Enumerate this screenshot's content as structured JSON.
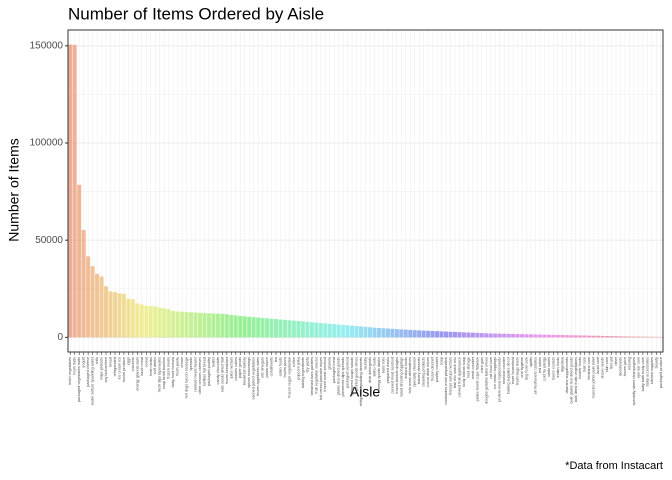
{
  "chart_data": {
    "type": "bar",
    "title": "Number of Items Ordered by Aisle",
    "x_label": "Aisle",
    "y_label": "Number of Items",
    "caption": "*Data from Instacart",
    "categories": [
      "fresh vegetables",
      "fresh fruits",
      "packaged vegetables fruits",
      "yogurt",
      "packaged cheese",
      "water seltzer sparkling water",
      "milk",
      "chips pretzels",
      "soy lactosefree",
      "bread",
      "refrigerated",
      "ice cream ice",
      "frozen produce",
      "eggs",
      "crackers",
      "energy granola bars",
      "lunch meat",
      "cereal",
      "fresh herbs",
      "soft drinks",
      "fresh dips tapenades",
      "soup broth bouillon",
      "frozen meals",
      "baby food formula",
      "fresh pasta",
      "cream",
      "hot dogs bacon sausage",
      "spreads",
      "canned meals beans",
      "other creams cheeses",
      "tortillas flat bread",
      "packaged poultry",
      "butter",
      "candy chocolate",
      "nuts seeds dried fruit",
      "frozen breakfast",
      "juice nectars",
      "cookies cakes",
      "paper goods",
      "breakfast bakery",
      "spices seasonings",
      "canned jarred vegetables",
      "frozen appetizers sides",
      "oils vinegars",
      "pasta sauce",
      "condiments",
      "tea",
      "asian foods",
      "frozen pizza",
      "frozen vegan vegetarian",
      "coffee",
      "popcorn jerky",
      "baking ingredients",
      "dry pasta",
      "breakfast bars pastries",
      "fruit vegetable snacks",
      "hot cereal pancake mixes",
      "frozen meat seafood",
      "granola",
      "packaged meat",
      "grains rice dried goods",
      "preserved dips spreads",
      "packaged seafood",
      "prepared soups salads",
      "pickled goods olives",
      "refrigerated pudding desserts",
      "laundry",
      "dish detergents",
      "latino foods",
      "energy sports drinks",
      "buns rolls",
      "prepared meals",
      "canned meat seafood",
      "frozen breads doughs",
      "salad dressing toppings",
      "instant foods",
      "tofu meat alternatives",
      "specialty cheeses",
      "bakery desserts",
      "cleaning products",
      "cocoa drink mixes",
      "frozen dessert",
      "poultry counter",
      "soap",
      "marinades meat preparation",
      "honeys syrups nectars",
      "trail mix snack mix",
      "canned fruit applesauce",
      "body lotions soap",
      "food storage",
      "meat counter",
      "plates bowls cups flatware",
      "mint gum",
      "doughs gelatins bake mixes",
      "cat food care",
      "ice cream toppings",
      "protein meal replacements",
      "seafood counter",
      "baking supplies decor",
      "more household",
      "trash bags liners",
      "oral hygiene",
      "dog food care",
      "spirits",
      "air fresheners candles",
      "red wines",
      "cold flu allergy",
      "white wines",
      "beers coolers",
      "indian foods",
      "digestion",
      "vitamins supplements",
      "bulk grains rice dried goods",
      "bulk dried fruits vegetables",
      "kosher foods",
      "hair care",
      "feminine care",
      "muscles joints pain relief",
      "facial care",
      "shave needs",
      "skin care",
      "first aid",
      "other",
      "deodorants",
      "frozen juice",
      "missing",
      "specialty wines champagnes",
      "eye ear care",
      "baby bath body care",
      "baby accessories",
      "kitchen supplies",
      "beauty",
      "packaged produce"
    ],
    "values": [
      150609,
      150473,
      78493,
      55240,
      41699,
      36617,
      32644,
      31269,
      26240,
      23635,
      23228,
      22676,
      22453,
      19875,
      19592,
      17449,
      16957,
      16201,
      16052,
      15936,
      15290,
      14995,
      14500,
      13600,
      13300,
      13200,
      13000,
      12900,
      12800,
      12600,
      12500,
      12400,
      12300,
      12200,
      12100,
      11900,
      11500,
      11300,
      11000,
      10800,
      10600,
      10400,
      10200,
      10000,
      9800,
      9600,
      9400,
      9200,
      9000,
      8800,
      8600,
      8400,
      8200,
      8000,
      7800,
      7600,
      7400,
      7200,
      7000,
      6800,
      6600,
      6400,
      6200,
      6000,
      5800,
      5600,
      5400,
      5200,
      5000,
      4850,
      4700,
      4550,
      4400,
      4250,
      4100,
      3950,
      3800,
      3700,
      3600,
      3500,
      3400,
      3300,
      3200,
      3100,
      3000,
      2900,
      2800,
      2700,
      2600,
      2500,
      2400,
      2300,
      2200,
      2100,
      2000,
      1950,
      1900,
      1850,
      1800,
      1750,
      1700,
      1650,
      1600,
      1550,
      1500,
      1450,
      1400,
      1350,
      1300,
      1250,
      1200,
      1150,
      1100,
      1050,
      1000,
      950,
      900,
      850,
      800,
      750,
      700,
      650,
      600,
      550,
      500,
      450,
      400,
      380,
      350,
      320,
      290,
      260,
      240
    ],
    "ylim": [
      -7530,
      158139
    ],
    "yticks": [
      0,
      50000,
      100000,
      150000
    ],
    "minor_yticks": [
      25000,
      75000,
      125000
    ],
    "grid": true,
    "hue_range": [
      15,
      375
    ],
    "opacity": 0.6
  }
}
